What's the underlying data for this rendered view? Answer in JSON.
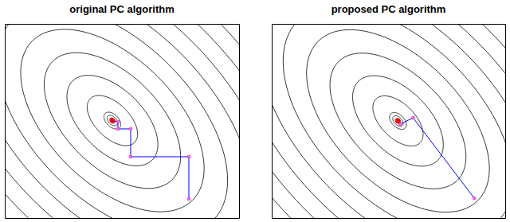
{
  "chart_data": [
    {
      "type": "contour",
      "title": "original PC algorithm",
      "xlim": [
        0,
        300
      ],
      "ylim": [
        0,
        250
      ],
      "tick_labels": false,
      "contours": {
        "center": [
          137.8,
          125.5
        ],
        "axis_angle": -45,
        "semi_major": [
          4,
          8,
          13,
          40,
          72,
          108,
          145,
          182,
          220,
          258,
          296,
          334,
          372,
          410
        ],
        "semi_minor": [
          2.5,
          5,
          8,
          22,
          40,
          60,
          81,
          102,
          123,
          144,
          165,
          186,
          207,
          228
        ]
      },
      "series": [
        {
          "type": "line",
          "color": "#0000ff",
          "marker": "circle",
          "x": [
            235.7,
            235.7,
            161.2,
            161.2,
            144.9,
            144.9,
            137.8
          ],
          "y": [
            24.6,
            78.9,
            78.9,
            114.8,
            114.8,
            124.0,
            125.5
          ]
        }
      ]
    },
    {
      "type": "contour",
      "title": "proposed PC algorithm",
      "xlim": [
        0,
        300
      ],
      "ylim": [
        0,
        250
      ],
      "tick_labels": false,
      "contours": {
        "center": [
          162.2,
          125.0
        ],
        "axis_angle": -45,
        "semi_major": [
          4,
          8,
          13,
          40,
          72,
          108,
          145,
          182,
          220,
          258,
          296,
          334,
          372,
          410
        ],
        "semi_minor": [
          2.5,
          5,
          8,
          22,
          40,
          60,
          81,
          102,
          123,
          144,
          165,
          186,
          207,
          228
        ]
      },
      "series": [
        {
          "type": "line",
          "color": "#0000ff",
          "marker": "circle",
          "x": [
            260.2,
            181.6,
            165.3,
            162.2
          ],
          "y": [
            25.6,
            129.1,
            120.9,
            125.0
          ]
        }
      ]
    }
  ]
}
